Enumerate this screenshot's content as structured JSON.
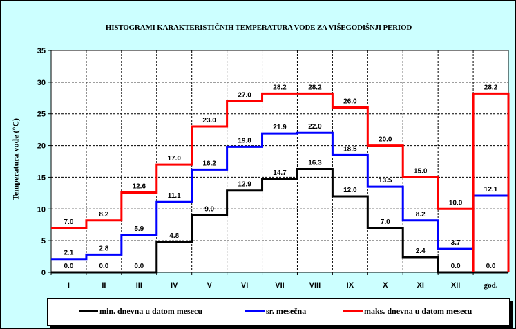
{
  "chart_data": {
    "type": "line",
    "step": true,
    "title": "HISTOGRAMI KARAKTERISTIČNIH TEMPERATURA VODE ZA VIŠEGODIŠNJI PERIOD",
    "xlabel": "",
    "ylabel": "Temperatura vode (°C)",
    "ylim": [
      0,
      35
    ],
    "yticks": [
      0,
      5,
      10,
      15,
      20,
      25,
      30,
      35
    ],
    "grid": true,
    "legend": "bottom",
    "categories": [
      "I",
      "II",
      "III",
      "IV",
      "V",
      "VI",
      "VII",
      "VIII",
      "IX",
      "X",
      "XI",
      "XII",
      "god."
    ],
    "series": [
      {
        "name": "min. dnevna u datom mesecu",
        "color": "#000000",
        "values": [
          0.0,
          0.0,
          0.0,
          4.8,
          9.0,
          12.9,
          14.7,
          16.3,
          12.0,
          7.0,
          2.4,
          0.0,
          0.0
        ]
      },
      {
        "name": "sr. mesečna",
        "color": "#0000ff",
        "values": [
          2.1,
          2.8,
          5.9,
          11.1,
          16.2,
          19.8,
          21.9,
          22.0,
          18.5,
          13.5,
          8.2,
          3.7,
          12.1
        ]
      },
      {
        "name": "maks. dnevna u datom mesecu",
        "color": "#ff0000",
        "values": [
          7.0,
          8.2,
          12.6,
          17.0,
          23.0,
          27.0,
          28.2,
          28.2,
          26.0,
          20.0,
          15.0,
          10.0,
          28.2
        ]
      }
    ]
  }
}
